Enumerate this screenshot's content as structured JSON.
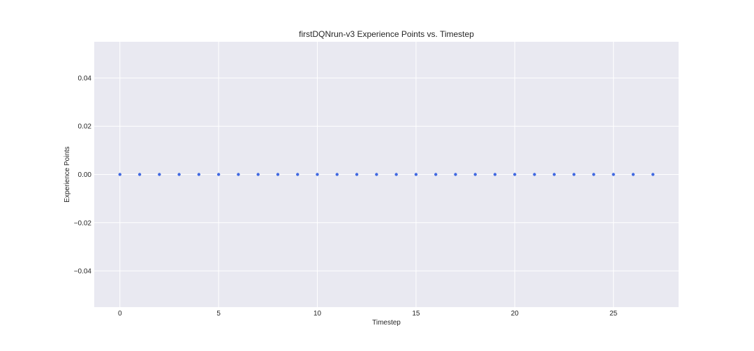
{
  "chart_data": {
    "type": "scatter",
    "title": "firstDQNrun-v3 Experience Points vs. Timestep",
    "xlabel": "Timestep",
    "ylabel": "Experience Points",
    "xlim": [
      -1.3,
      28.3
    ],
    "ylim": [
      -0.055,
      0.055
    ],
    "x_ticks": [
      0,
      5,
      10,
      15,
      20,
      25
    ],
    "x_tick_labels": [
      "0",
      "5",
      "10",
      "15",
      "20",
      "25"
    ],
    "y_ticks": [
      -0.04,
      -0.02,
      0.0,
      0.02,
      0.04
    ],
    "y_tick_labels": [
      "−0.04",
      "−0.02",
      "0.00",
      "0.02",
      "0.04"
    ],
    "grid": true,
    "series": [
      {
        "color": "#4169e1",
        "x": [
          0,
          1,
          2,
          3,
          4,
          5,
          6,
          7,
          8,
          9,
          10,
          11,
          12,
          13,
          14,
          15,
          16,
          17,
          18,
          19,
          20,
          21,
          22,
          23,
          24,
          25,
          26,
          27
        ],
        "y": [
          0,
          0,
          0,
          0,
          0,
          0,
          0,
          0,
          0,
          0,
          0,
          0,
          0,
          0,
          0,
          0,
          0,
          0,
          0,
          0,
          0,
          0,
          0,
          0,
          0,
          0,
          0,
          0
        ]
      }
    ]
  },
  "colors": {
    "plot_background": "#e9e9f1",
    "grid": "#ffffff",
    "text": "#262626"
  }
}
